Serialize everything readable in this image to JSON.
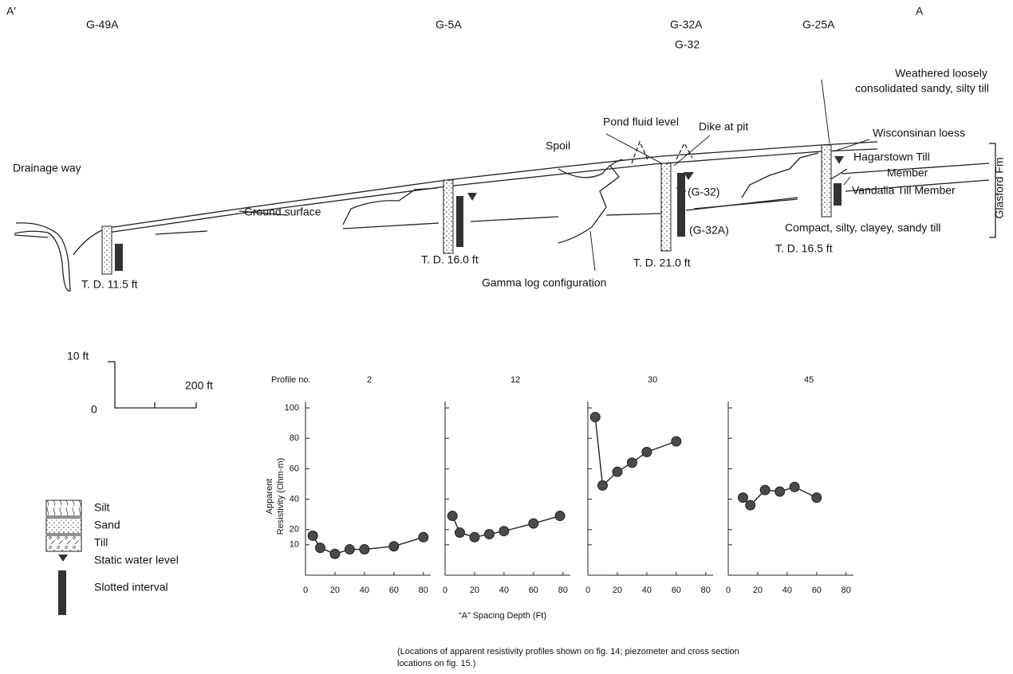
{
  "cross_section": {
    "end_left": "A′",
    "end_right": "A",
    "wells": [
      "G-49A",
      "G-5A",
      "G-32A",
      "G-32",
      "G-25A"
    ],
    "drainage": "Drainage way",
    "ground": "Ground surface",
    "spoil": "Spoil",
    "pond": "Pond fluid level",
    "dike": "Dike at pit",
    "weathered": [
      "Weathered loosely",
      "consolidated sandy, silty till"
    ],
    "loess": "Wisconsinan loess",
    "hagarstown": [
      "Hagarstown Till",
      "Member"
    ],
    "vandalia": "Vandalia Till Member",
    "formation": "Glasford Fm",
    "g32": "(G-32)",
    "g32a": "(G-32A)",
    "compact": "Compact, silty, clayey, sandy till",
    "depths": [
      "T. D. 11.5 ft",
      "T. D. 16.0 ft",
      "T. D. 21.0 ft",
      "T. D. 16.5 ft"
    ],
    "gamma": "Gamma log configuration"
  },
  "scale": {
    "vertical": "10 ft",
    "origin": "0",
    "horizontal": "200 ft"
  },
  "legend": [
    "Silt",
    "Sand",
    "Till",
    "Static water level",
    "Slotted interval"
  ],
  "profile_label": "Profile no.",
  "y_axis_label": [
    "Apparent",
    "Resistivity (Ohm-m)"
  ],
  "x_axis_label": "“A” Spacing Depth (Ft)",
  "caption": [
    "(Locations of apparent resistivity profiles shown on fig. 14; piezometer and cross section",
    "locations on fig. 15.)"
  ],
  "chart_data": [
    {
      "type": "line",
      "title": "2",
      "x": [
        5,
        10,
        20,
        30,
        40,
        60,
        80
      ],
      "values": [
        16,
        8,
        4,
        7,
        7,
        9,
        15
      ],
      "color": "#4a4a4a",
      "xlim": [
        0,
        85
      ],
      "xticks": [
        0,
        20,
        40,
        60,
        80
      ],
      "ylim": [
        -10,
        100
      ],
      "yticks": [
        100,
        80,
        60,
        40,
        20,
        10
      ]
    },
    {
      "type": "line",
      "title": "12",
      "x": [
        5,
        10,
        20,
        30,
        40,
        60,
        78
      ],
      "values": [
        29,
        18,
        15,
        17,
        19,
        24,
        29
      ],
      "color": "#4a4a4a",
      "xlim": [
        0,
        85
      ],
      "xticks": [
        0,
        20,
        40,
        60,
        80
      ],
      "ylim": [
        -10,
        100
      ],
      "yticks": [
        100,
        80,
        60,
        40,
        20,
        10
      ]
    },
    {
      "type": "line",
      "title": "30",
      "x": [
        5,
        10,
        20,
        30,
        40,
        60
      ],
      "values": [
        94,
        49,
        58,
        64,
        71,
        78
      ],
      "color": "#4a4a4a",
      "xlim": [
        0,
        85
      ],
      "xticks": [
        0,
        20,
        40,
        60,
        80
      ],
      "ylim": [
        -10,
        100
      ],
      "yticks": [
        100,
        80,
        60,
        40,
        20,
        10
      ]
    },
    {
      "type": "line",
      "title": "45",
      "x": [
        10,
        15,
        25,
        35,
        45,
        60
      ],
      "values": [
        41,
        36,
        46,
        45,
        48,
        41
      ],
      "color": "#4a4a4a",
      "xlim": [
        0,
        85
      ],
      "xticks": [
        0,
        20,
        40,
        60,
        80
      ],
      "ylim": [
        -10,
        100
      ],
      "yticks": [
        100,
        80,
        60,
        40,
        20,
        10
      ]
    }
  ]
}
